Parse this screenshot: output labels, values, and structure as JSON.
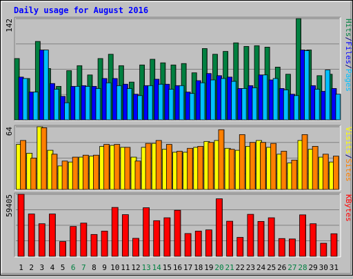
{
  "chart_data": {
    "type": "bar",
    "title": "Daily usage for August 2016",
    "days": [
      "1",
      "2",
      "3",
      "4",
      "5",
      "6",
      "7",
      "8",
      "9",
      "10",
      "11",
      "12",
      "13",
      "14",
      "15",
      "16",
      "17",
      "18",
      "19",
      "20",
      "21",
      "22",
      "23",
      "24",
      "25",
      "26",
      "27",
      "28",
      "29",
      "30",
      "31"
    ],
    "weekend_days": [
      "6",
      "7",
      "13",
      "14",
      "20",
      "21",
      "27",
      "28"
    ],
    "panels": [
      {
        "name": "hits-files-pages",
        "max_label": "142",
        "ymax": 142,
        "legend": [
          "Pages",
          "/",
          "Files",
          "/",
          "Hits"
        ],
        "legend_colors": [
          "#00c0ff",
          "#000080",
          "#0000ff",
          "#000080",
          "#008040"
        ],
        "series": [
          {
            "name": "Hits",
            "color": "#008040",
            "values": [
              86,
              58,
              110,
              72,
              47,
              69,
              76,
              63,
              86,
              92,
              76,
              53,
              77,
              85,
              80,
              77,
              79,
              66,
              100,
              92,
              96,
              108,
              103,
              104,
              102,
              74,
              64,
              142,
              98,
              62,
              64
            ]
          },
          {
            "name": "Files",
            "color": "#0000ff",
            "values": [
              60,
              39,
              98,
              51,
              33,
              47,
              48,
              47,
              58,
              58,
              50,
              36,
              48,
              57,
              50,
              48,
              39,
              55,
              65,
              62,
              60,
              44,
              48,
              63,
              56,
              44,
              36,
              98,
              48,
              40,
              44
            ]
          },
          {
            "name": "Pages",
            "color": "#00c0ff",
            "values": [
              58,
              39,
              98,
              43,
              24,
              47,
              47,
              44,
              52,
              48,
              44,
              34,
              48,
              50,
              43,
              48,
              37,
              52,
              56,
              58,
              54,
              44,
              45,
              63,
              58,
              42,
              34,
              97,
              43,
              70,
              36
            ]
          }
        ]
      },
      {
        "name": "visits-sites",
        "max_label": "64",
        "ymax": 64,
        "legend": [
          "Sites",
          "/",
          "Visits"
        ],
        "legend_colors": [
          "#ff8000",
          "#000080",
          "#ffff00"
        ],
        "series": [
          {
            "name": "Visits",
            "color": "#ffff00",
            "values": [
              46,
              37,
              64,
              40,
              24,
              28,
              33,
              34,
              44,
              45,
              43,
              33,
              43,
              47,
              41,
              38,
              38,
              43,
              49,
              50,
              42,
              40,
              44,
              50,
              43,
              36,
              27,
              50,
              41,
              33,
              28
            ]
          },
          {
            "name": "Sites",
            "color": "#ff8000",
            "values": [
              50,
              32,
              63,
              36,
              29,
              33,
              35,
              35,
              46,
              46,
              43,
              29,
              47,
              50,
              46,
              39,
              42,
              44,
              48,
              61,
              41,
              56,
              48,
              48,
              47,
              39,
              30,
              56,
              44,
              36,
              34
            ]
          }
        ]
      },
      {
        "name": "kbytes",
        "max_label": "59405",
        "ymax": 59405,
        "legend": [
          "KBytes"
        ],
        "legend_colors": [
          "#ff0000"
        ],
        "series": [
          {
            "name": "KBytes",
            "color": "#ff0000",
            "values": [
              59405,
              40512,
              31200,
              40512,
              14100,
              28600,
              31800,
              20900,
              24100,
              46800,
              39900,
              17200,
              46500,
              34100,
              36900,
              44100,
              21800,
              24100,
              25300,
              55100,
              33600,
              18100,
              40200,
              33400,
              36900,
              17000,
              16600,
              39700,
              31200,
              12500,
              21600
            ]
          }
        ]
      }
    ]
  }
}
